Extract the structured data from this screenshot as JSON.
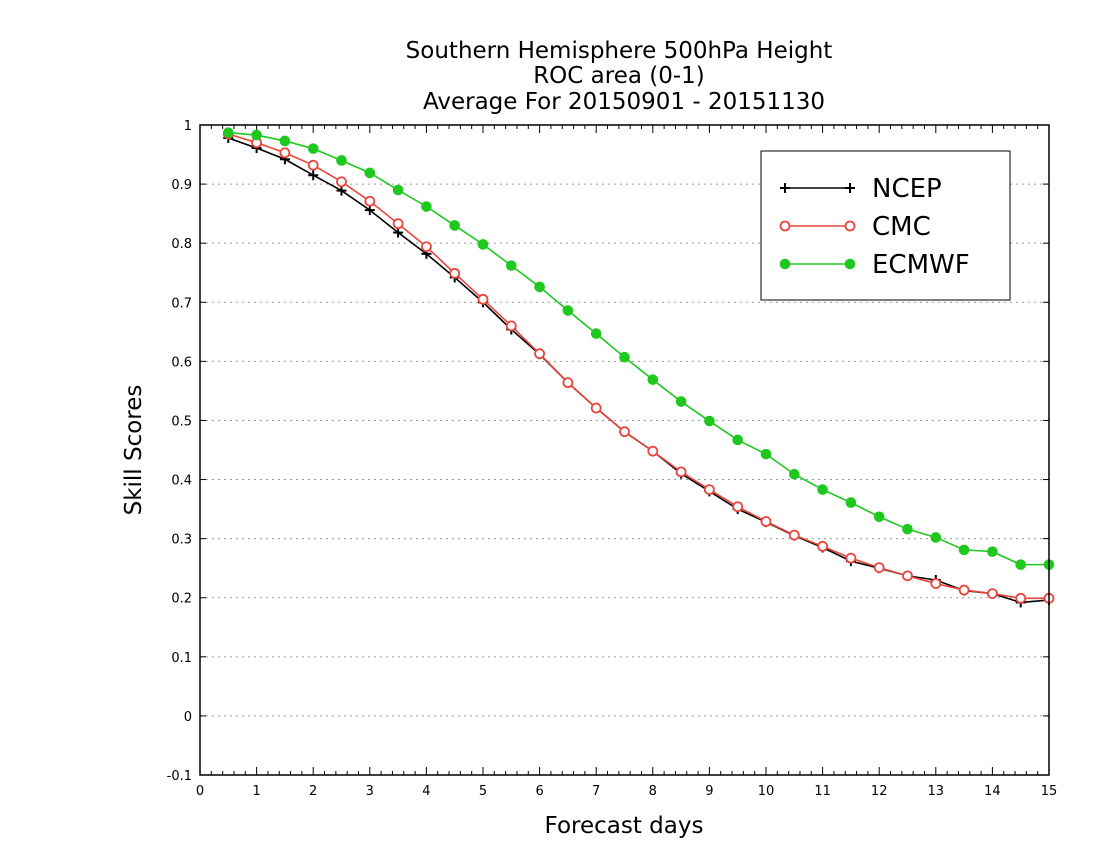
{
  "chart_data": {
    "type": "line",
    "title": [
      "Southern Hemisphere 500hPa Height",
      "ROC area (0-1)",
      "Average For 20150901 - 20151130"
    ],
    "xlabel": "Forecast days",
    "ylabel": "Skill Scores",
    "xlim": [
      0,
      15
    ],
    "ylim": [
      -0.1,
      1
    ],
    "x_ticks": [
      "0",
      "1",
      "2",
      "3",
      "4",
      "5",
      "6",
      "7",
      "8",
      "9",
      "10",
      "11",
      "12",
      "13",
      "14",
      "15"
    ],
    "y_ticks": [
      "-0.1",
      "0",
      "0.1",
      "0.2",
      "0.3",
      "0.4",
      "0.5",
      "0.6",
      "0.7",
      "0.8",
      "0.9",
      "1"
    ],
    "grid": "horizontal dotted",
    "legend_position": "top-right",
    "x": [
      0.5,
      1,
      1.5,
      2,
      2.5,
      3,
      3.5,
      4,
      4.5,
      5,
      5.5,
      6,
      6.5,
      7,
      7.5,
      8,
      8.5,
      9,
      9.5,
      10,
      10.5,
      11,
      11.5,
      12,
      12.5,
      13,
      13.5,
      14,
      14.5,
      15
    ],
    "series": [
      {
        "name": "NCEP",
        "color": "#000000",
        "marker": "plus",
        "values": [
          0.978,
          0.961,
          0.942,
          0.915,
          0.889,
          0.856,
          0.818,
          0.782,
          0.742,
          0.7,
          0.654,
          0.612,
          0.564,
          0.521,
          0.481,
          0.448,
          0.41,
          0.38,
          0.35,
          0.328,
          0.305,
          0.285,
          0.262,
          0.25,
          0.237,
          0.23,
          0.212,
          0.207,
          0.192,
          0.196
        ]
      },
      {
        "name": "CMC",
        "color": "#e8453c",
        "marker": "open-circle",
        "values": [
          0.985,
          0.97,
          0.953,
          0.932,
          0.904,
          0.871,
          0.833,
          0.794,
          0.749,
          0.705,
          0.66,
          0.613,
          0.564,
          0.521,
          0.481,
          0.448,
          0.413,
          0.383,
          0.354,
          0.329,
          0.306,
          0.287,
          0.267,
          0.251,
          0.237,
          0.224,
          0.213,
          0.207,
          0.199,
          0.199
        ]
      },
      {
        "name": "ECMWF",
        "color": "#1ec81e",
        "marker": "filled-circle",
        "values": [
          0.987,
          0.983,
          0.973,
          0.96,
          0.94,
          0.919,
          0.89,
          0.862,
          0.83,
          0.798,
          0.762,
          0.726,
          0.686,
          0.647,
          0.607,
          0.569,
          0.532,
          0.499,
          0.467,
          0.443,
          0.409,
          0.383,
          0.361,
          0.337,
          0.316,
          0.302,
          0.281,
          0.278,
          0.256,
          0.256
        ]
      }
    ]
  }
}
